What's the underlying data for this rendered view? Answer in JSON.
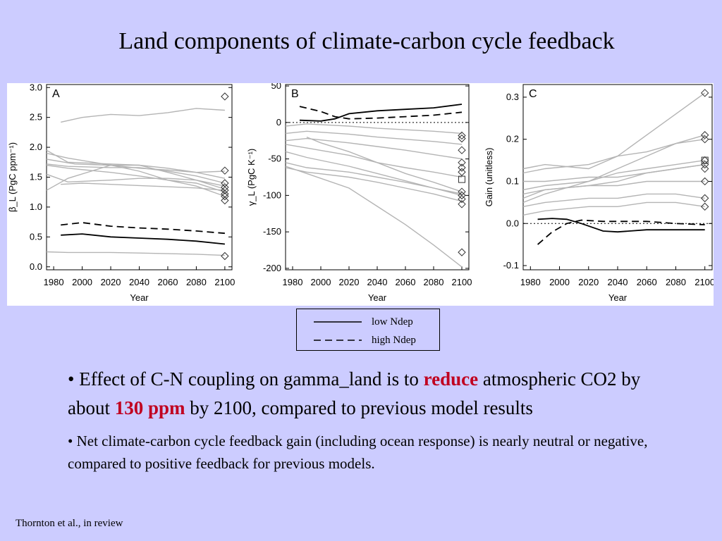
{
  "slide": {
    "title": "Land components of climate-carbon cycle feedback",
    "footnote": "Thornton et al., in review"
  },
  "legend": {
    "items": [
      {
        "label": "low Ndep",
        "style": "solid"
      },
      {
        "label": "high Ndep",
        "style": "dashed"
      }
    ]
  },
  "bullets": {
    "b1": {
      "pre": "Effect of C-N coupling on gamma_land is to ",
      "hl1": "reduce",
      "mid": " atmospheric CO2 by about ",
      "hl2": "130 ppm",
      "post": " by 2100, compared to previous model results"
    },
    "b2": "Net climate-carbon cycle feedback gain (including ocean response) is nearly neutral or negative, compared to positive feedback for previous models."
  },
  "colors": {
    "background": "#ccccff",
    "highlight": "#c00020",
    "gray_series": "#b4b4b4",
    "black_series": "#000000"
  },
  "chart_data": [
    {
      "type": "line",
      "panel": "A",
      "xlabel": "Year",
      "ylabel": "β_L (PgC ppm⁻¹)",
      "xlim": [
        1975,
        2105
      ],
      "ylim": [
        -0.05,
        3.05
      ],
      "xticks": [
        1980,
        2000,
        2020,
        2040,
        2060,
        2080,
        2100
      ],
      "yticks": [
        0.0,
        0.5,
        1.0,
        1.5,
        2.0,
        2.5,
        3.0
      ],
      "ytick_labels": [
        "0.0",
        "0.5",
        "1.0",
        "1.5",
        "2.0",
        "2.5",
        "3.0"
      ],
      "gray_lines": [
        {
          "x": [
            1985,
            2000,
            2020,
            2040,
            2060,
            2080,
            2100
          ],
          "y": [
            2.42,
            2.5,
            2.55,
            2.53,
            2.58,
            2.65,
            2.62
          ]
        },
        {
          "x": [
            1975,
            1990,
            2020,
            2040,
            2060,
            2080,
            2100
          ],
          "y": [
            1.95,
            1.75,
            1.72,
            1.7,
            1.65,
            1.58,
            1.48
          ]
        },
        {
          "x": [
            1975,
            1990,
            2020,
            2040,
            2060,
            2080,
            2100
          ],
          "y": [
            1.9,
            1.82,
            1.7,
            1.6,
            1.45,
            1.35,
            1.18
          ]
        },
        {
          "x": [
            1975,
            1995,
            2020,
            2040,
            2060,
            2080,
            2100
          ],
          "y": [
            1.8,
            1.72,
            1.7,
            1.65,
            1.62,
            1.58,
            1.6
          ]
        },
        {
          "x": [
            1975,
            1990,
            2020,
            2040,
            2060,
            2080,
            2100
          ],
          "y": [
            1.72,
            1.68,
            1.66,
            1.66,
            1.6,
            1.52,
            1.4
          ]
        },
        {
          "x": [
            1975,
            1990,
            2020,
            2040,
            2060,
            2080,
            2100
          ],
          "y": [
            1.7,
            1.65,
            1.58,
            1.52,
            1.45,
            1.4,
            1.25
          ]
        },
        {
          "x": [
            1975,
            1990,
            2020,
            2040,
            2060,
            2080,
            2100
          ],
          "y": [
            1.28,
            1.48,
            1.7,
            1.7,
            1.58,
            1.45,
            1.3
          ]
        },
        {
          "x": [
            1975,
            1990,
            2020,
            2040,
            2060,
            2080,
            2100
          ],
          "y": [
            1.55,
            1.42,
            1.45,
            1.48,
            1.48,
            1.45,
            1.35
          ]
        },
        {
          "x": [
            1985,
            2000,
            2020,
            2040,
            2060,
            2080,
            2100
          ],
          "y": [
            1.38,
            1.4,
            1.38,
            1.36,
            1.34,
            1.32,
            1.28
          ]
        },
        {
          "x": [
            1975,
            1990,
            2020,
            2040,
            2060,
            2080,
            2100
          ],
          "y": [
            0.25,
            0.24,
            0.24,
            0.23,
            0.22,
            0.21,
            0.19
          ]
        }
      ],
      "low_ndep": {
        "x": [
          1985,
          2000,
          2020,
          2040,
          2060,
          2080,
          2100
        ],
        "y": [
          0.53,
          0.55,
          0.5,
          0.48,
          0.46,
          0.43,
          0.38
        ]
      },
      "high_ndep": {
        "x": [
          1985,
          2000,
          2020,
          2040,
          2060,
          2080,
          2100
        ],
        "y": [
          0.7,
          0.74,
          0.68,
          0.65,
          0.63,
          0.6,
          0.56
        ]
      },
      "diamonds_2100": [
        2.85,
        1.61,
        1.4,
        1.33,
        1.28,
        1.22,
        1.18,
        1.11,
        0.18
      ]
    },
    {
      "type": "line",
      "panel": "B",
      "xlabel": "Year",
      "ylabel": "γ_L (PgC K⁻¹)",
      "xlim": [
        1975,
        2105
      ],
      "ylim": [
        -202,
        52
      ],
      "xticks": [
        1980,
        2000,
        2020,
        2040,
        2060,
        2080,
        2100
      ],
      "yticks": [
        -200,
        -150,
        -100,
        -50,
        0,
        50
      ],
      "ytick_labels": [
        "-200",
        "-150",
        "-100",
        "-50",
        "0",
        "50"
      ],
      "zero_line": 0,
      "gray_lines": [
        {
          "x": [
            1975,
            1990,
            2020,
            2040,
            2060,
            2080,
            2100
          ],
          "y": [
            -5,
            -2,
            -5,
            -8,
            -10,
            -12,
            -15
          ]
        },
        {
          "x": [
            1975,
            1990,
            2020,
            2040,
            2060,
            2080,
            2100
          ],
          "y": [
            -15,
            -12,
            -16,
            -20,
            -23,
            -26,
            -30
          ]
        },
        {
          "x": [
            1975,
            1990,
            2020,
            2040,
            2060,
            2080,
            2100
          ],
          "y": [
            -25,
            -22,
            -28,
            -33,
            -38,
            -44,
            -50
          ]
        },
        {
          "x": [
            1975,
            1990,
            2020,
            2040,
            2060,
            2080,
            2100
          ],
          "y": [
            -30,
            -35,
            -45,
            -55,
            -62,
            -68,
            -75
          ]
        },
        {
          "x": [
            1990,
            2000,
            2020,
            2040,
            2060,
            2080,
            2100
          ],
          "y": [
            -20,
            -28,
            -40,
            -55,
            -70,
            -82,
            -95
          ]
        },
        {
          "x": [
            1975,
            1990,
            2020,
            2040,
            2060,
            2080,
            2100
          ],
          "y": [
            -40,
            -48,
            -60,
            -70,
            -80,
            -90,
            -100
          ]
        },
        {
          "x": [
            1975,
            1990,
            2020,
            2040,
            2060,
            2080,
            2100
          ],
          "y": [
            -55,
            -62,
            -68,
            -75,
            -82,
            -90,
            -98
          ]
        },
        {
          "x": [
            1975,
            1990,
            2020,
            2040,
            2060,
            2080,
            2100
          ],
          "y": [
            -62,
            -68,
            -75,
            -82,
            -90,
            -98,
            -108
          ]
        },
        {
          "x": [
            1975,
            1990,
            2020,
            2040,
            2060,
            2080,
            2100
          ],
          "y": [
            -60,
            -70,
            -90,
            -115,
            -140,
            -168,
            -198
          ]
        }
      ],
      "low_ndep": {
        "x": [
          1985,
          2000,
          2010,
          2020,
          2040,
          2060,
          2080,
          2100
        ],
        "y": [
          3,
          2,
          5,
          12,
          16,
          18,
          20,
          25
        ]
      },
      "high_ndep": {
        "x": [
          1985,
          2000,
          2010,
          2020,
          2040,
          2060,
          2080,
          2100
        ],
        "y": [
          22,
          15,
          8,
          5,
          6,
          8,
          10,
          14
        ]
      },
      "diamonds_2100": [
        -18,
        -22,
        -38,
        -55,
        -62,
        -68,
        -95,
        -100,
        -105,
        -112,
        -178
      ],
      "squares_2100": [
        -78
      ]
    },
    {
      "type": "line",
      "panel": "C",
      "xlabel": "Year",
      "ylabel": "Gain (unitless)",
      "xlim": [
        1975,
        2105
      ],
      "ylim": [
        -0.11,
        0.33
      ],
      "xticks": [
        1980,
        2000,
        2020,
        2040,
        2060,
        2080,
        2100
      ],
      "yticks": [
        -0.1,
        0.0,
        0.1,
        0.2,
        0.3
      ],
      "ytick_labels": [
        "-0.1",
        "0.0",
        "0.1",
        "0.2",
        "0.3"
      ],
      "zero_line": 0,
      "gray_lines": [
        {
          "x": [
            1975,
            1990,
            2020,
            2040,
            2060,
            2080,
            2100
          ],
          "y": [
            0.13,
            0.14,
            0.13,
            0.16,
            0.21,
            0.26,
            0.31
          ]
        },
        {
          "x": [
            1975,
            1990,
            2020,
            2040,
            2060,
            2080,
            2100
          ],
          "y": [
            0.05,
            0.07,
            0.1,
            0.13,
            0.16,
            0.19,
            0.21
          ]
        },
        {
          "x": [
            1975,
            1990,
            2020,
            2040,
            2060,
            2080,
            2100
          ],
          "y": [
            0.12,
            0.13,
            0.14,
            0.16,
            0.17,
            0.19,
            0.2
          ]
        },
        {
          "x": [
            1975,
            1990,
            2020,
            2040,
            2060,
            2080,
            2100
          ],
          "y": [
            0.08,
            0.09,
            0.1,
            0.12,
            0.13,
            0.14,
            0.15
          ]
        },
        {
          "x": [
            1975,
            1990,
            2020,
            2040,
            2060,
            2080,
            2100
          ],
          "y": [
            0.06,
            0.08,
            0.09,
            0.1,
            0.12,
            0.13,
            0.14
          ]
        },
        {
          "x": [
            1975,
            1990,
            2020,
            2040,
            2060,
            2080,
            2100
          ],
          "y": [
            0.1,
            0.1,
            0.11,
            0.11,
            0.12,
            0.13,
            0.14
          ]
        },
        {
          "x": [
            1975,
            1990,
            2020,
            2040,
            2060,
            2080,
            2100
          ],
          "y": [
            0.07,
            0.08,
            0.09,
            0.09,
            0.1,
            0.1,
            0.1
          ]
        },
        {
          "x": [
            1975,
            1990,
            2020,
            2040,
            2060,
            2080,
            2100
          ],
          "y": [
            0.04,
            0.05,
            0.06,
            0.06,
            0.07,
            0.07,
            0.06
          ]
        },
        {
          "x": [
            1975,
            1990,
            2020,
            2040,
            2060,
            2080,
            2100
          ],
          "y": [
            0.02,
            0.03,
            0.04,
            0.04,
            0.05,
            0.05,
            0.04
          ]
        }
      ],
      "low_ndep": {
        "x": [
          1985,
          1995,
          2005,
          2015,
          2030,
          2040,
          2060,
          2080,
          2100
        ],
        "y": [
          0.01,
          0.012,
          0.01,
          0.0,
          -0.018,
          -0.02,
          -0.015,
          -0.015,
          -0.015
        ]
      },
      "high_ndep": {
        "x": [
          1985,
          1995,
          2005,
          2015,
          2030,
          2040,
          2060,
          2080,
          2100
        ],
        "y": [
          -0.05,
          -0.02,
          0.0,
          0.008,
          0.005,
          0.005,
          0.005,
          0.0,
          -0.003
        ]
      },
      "diamonds_2100": [
        0.31,
        0.21,
        0.2,
        0.15,
        0.14,
        0.13,
        0.1,
        0.06,
        0.04
      ],
      "squares_2100": [
        0.15
      ]
    }
  ]
}
